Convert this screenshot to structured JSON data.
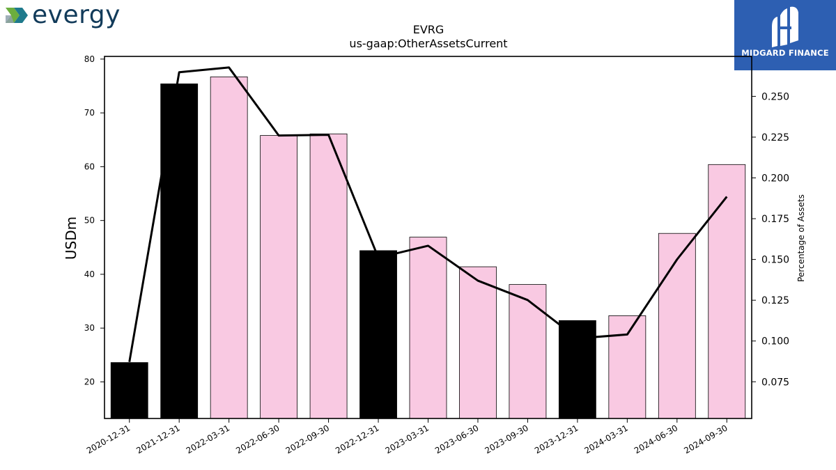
{
  "brand_left": {
    "name": "evergy",
    "icon": "evergy-chevron-logo-icon"
  },
  "brand_right": {
    "name": "MIDGARD FINANCE",
    "icon": "midgard-finance-logo-icon",
    "background": "#2d5fb2"
  },
  "chart_data": {
    "type": "bar",
    "title": "EVRG",
    "subtitle": "us-gaap:OtherAssetsCurrent",
    "xlabel": "",
    "ylabel": "USDm",
    "y2label": "Percentage of Assets",
    "categories": [
      "2020-12-31",
      "2021-12-31",
      "2022-03-31",
      "2022-06-30",
      "2022-09-30",
      "2022-12-31",
      "2023-03-31",
      "2023-06-30",
      "2023-09-30",
      "2023-12-31",
      "2024-03-31",
      "2024-06-30",
      "2024-09-30"
    ],
    "series": [
      {
        "type": "bar",
        "values": [
          23.6,
          75.4,
          76.7,
          65.8,
          66.1,
          44.4,
          46.9,
          41.4,
          38.1,
          31.4,
          32.3,
          47.6,
          60.4
        ],
        "colors": [
          "#000000",
          "#000000",
          "#f9c9e2",
          "#f9c9e2",
          "#f9c9e2",
          "#000000",
          "#f9c9e2",
          "#f9c9e2",
          "#f9c9e2",
          "#000000",
          "#f9c9e2",
          "#f9c9e2",
          "#f9c9e2"
        ]
      },
      {
        "type": "line",
        "axis": "right",
        "color": "#000000",
        "values": [
          0.0872,
          0.2648,
          0.2677,
          0.226,
          0.2264,
          0.1511,
          0.1584,
          0.137,
          0.1251,
          0.1016,
          0.104,
          0.15,
          0.1885
        ]
      }
    ],
    "ylim": [
      13.2,
      80.5
    ],
    "y2lim": [
      0.0525,
      0.2745
    ],
    "yticks": [
      20,
      30,
      40,
      50,
      60,
      70,
      80
    ],
    "y2ticks": [
      0.075,
      0.1,
      0.125,
      0.15,
      0.175,
      0.2,
      0.225,
      0.25
    ],
    "y2ticklabels": [
      "0.075",
      "0.100",
      "0.125",
      "0.150",
      "0.175",
      "0.200",
      "0.225",
      "0.250"
    ],
    "grid": false,
    "legend": "none"
  }
}
